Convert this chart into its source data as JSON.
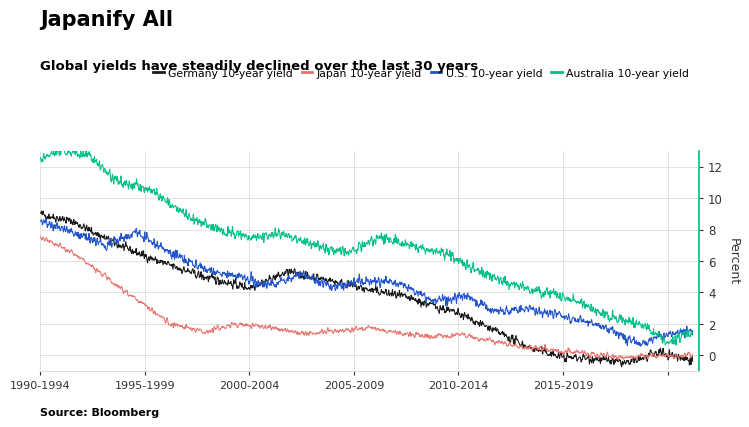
{
  "title": "Japanify All",
  "subtitle": "Global yields have steadily declined over the last 30 years",
  "source": "Source: Bloomberg",
  "ylabel": "Percent",
  "series": {
    "Germany": {
      "color": "#1a1a1a",
      "label": "Germany 10-year yield"
    },
    "Japan": {
      "color": "#E8736C",
      "label": "Japan 10-year yield"
    },
    "US": {
      "color": "#2255CC",
      "label": "U.S. 10-year yield"
    },
    "Australia": {
      "color": "#00BF88",
      "label": "Australia 10-year yield"
    }
  },
  "ylim": [
    -1.0,
    13.0
  ],
  "yticks": [
    0,
    2,
    4,
    6,
    8,
    10,
    12
  ],
  "xlim": [
    1990,
    2021.5
  ],
  "xtick_positions": [
    1990,
    1995,
    2000,
    2005,
    2010,
    2015,
    2020
  ],
  "xtick_labels": [
    "1990-1994",
    "1995-1999",
    "2000-2004",
    "2005-2009",
    "2010-2014",
    "2015-2019",
    ""
  ],
  "background_color": "#ffffff",
  "grid_color": "#dddddd",
  "spine_color": "#00BF88"
}
